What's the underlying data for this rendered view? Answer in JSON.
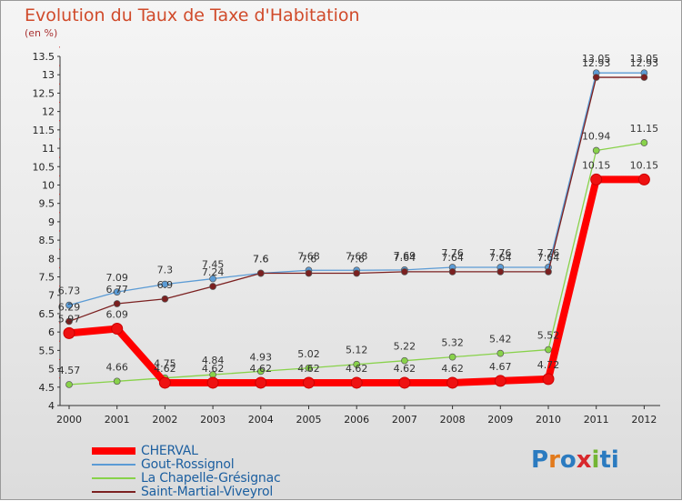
{
  "title": "Evolution du Taux de Taxe d'Habitation",
  "subtitle": "(en %)",
  "logo": [
    "P",
    "r",
    "o",
    "x",
    "i",
    "ti"
  ],
  "chart_data": {
    "type": "line",
    "title": "Evolution du Taux de Taxe d'Habitation",
    "ylabel": "(en %)",
    "xlabel": "",
    "x": [
      "2000",
      "2001",
      "2002",
      "2003",
      "2004",
      "2005",
      "2006",
      "2007",
      "2008",
      "2009",
      "2010",
      "2011",
      "2012"
    ],
    "ylim": [
      4,
      13.5
    ],
    "yticks": [
      "4",
      "4.5",
      "5",
      "5.5",
      "6",
      "6.5",
      "7",
      "7.5",
      "8",
      "8.5",
      "9",
      "9.5",
      "10",
      "10.5",
      "11",
      "11.5",
      "12",
      "12.5",
      "13",
      "13.5"
    ],
    "grid": false,
    "legend_position": "bottom-left",
    "series": [
      {
        "name": "CHERVAL",
        "color": "#ff0000",
        "values": [
          5.97,
          6.09,
          4.62,
          4.62,
          4.62,
          4.62,
          4.62,
          4.62,
          4.62,
          4.67,
          4.72,
          10.15,
          10.15
        ],
        "labels": [
          "5.97",
          "6.09",
          "4.62",
          "4.62",
          "4.62",
          "4.62",
          "4.62",
          "4.62",
          "4.62",
          "4.67",
          "4.72",
          "10.15",
          "10.15"
        ]
      },
      {
        "name": "Gout-Rossignol",
        "color": "#5b9bd5",
        "values": [
          6.73,
          7.09,
          7.3,
          7.45,
          7.6,
          7.68,
          7.68,
          7.69,
          7.76,
          7.76,
          7.76,
          13.05,
          13.05
        ],
        "labels": [
          "6.73",
          "7.09",
          "7.3",
          "7.45",
          "7.6",
          "7.68",
          "7.68",
          "7.69",
          "7.76",
          "7.76",
          "7.76",
          "13.05",
          "13.05"
        ]
      },
      {
        "name": "La Chapelle-Grésignac",
        "color": "#88d24a",
        "values": [
          4.57,
          4.66,
          4.75,
          4.84,
          4.93,
          5.02,
          5.12,
          5.22,
          5.32,
          5.42,
          5.52,
          10.94,
          11.15
        ],
        "labels": [
          "4.57",
          "4.66",
          "4.75",
          "4.84",
          "4.93",
          "5.02",
          "5.12",
          "5.22",
          "5.32",
          "5.42",
          "5.52",
          "10.94",
          "11.15"
        ]
      },
      {
        "name": "Saint-Martial-Viveyrol",
        "color": "#7b2020",
        "values": [
          6.29,
          6.77,
          6.9,
          7.24,
          7.6,
          7.6,
          7.6,
          7.64,
          7.64,
          7.64,
          7.64,
          12.93,
          12.93
        ],
        "labels": [
          "6.29",
          "6.77",
          "6.9",
          "7.24",
          "7.6",
          "7.6",
          "7.6",
          "7.64",
          "7.64",
          "7.64",
          "7.64",
          "12.93",
          "12.93"
        ]
      }
    ]
  }
}
